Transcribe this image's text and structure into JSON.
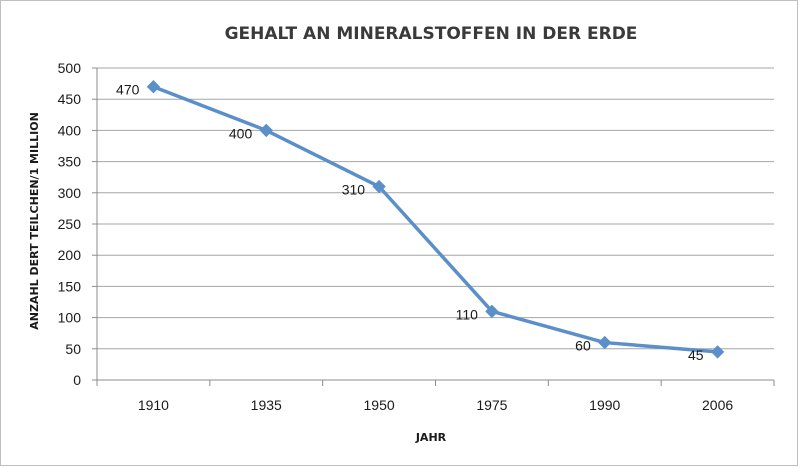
{
  "chart_data": {
    "type": "line",
    "title": "GEHALT AN MINERALSTOFFEN IN DER ERDE",
    "xlabel": "JAHR",
    "ylabel": "ANZAHL DERT TEILCHEN/1 MILLION",
    "categories": [
      "1910",
      "1935",
      "1950",
      "1975",
      "1990",
      "2006"
    ],
    "series": [
      {
        "values": [
          470,
          400,
          310,
          110,
          60,
          45
        ],
        "color": "#5b8fc9"
      }
    ],
    "data_labels": [
      "470",
      "400",
      "310",
      "110",
      "60",
      "45"
    ],
    "yticks": [
      0,
      50,
      100,
      150,
      200,
      250,
      300,
      350,
      400,
      450,
      500
    ],
    "ylim": [
      0,
      500
    ],
    "grid": true,
    "legend": "none",
    "marker": "diamond"
  }
}
